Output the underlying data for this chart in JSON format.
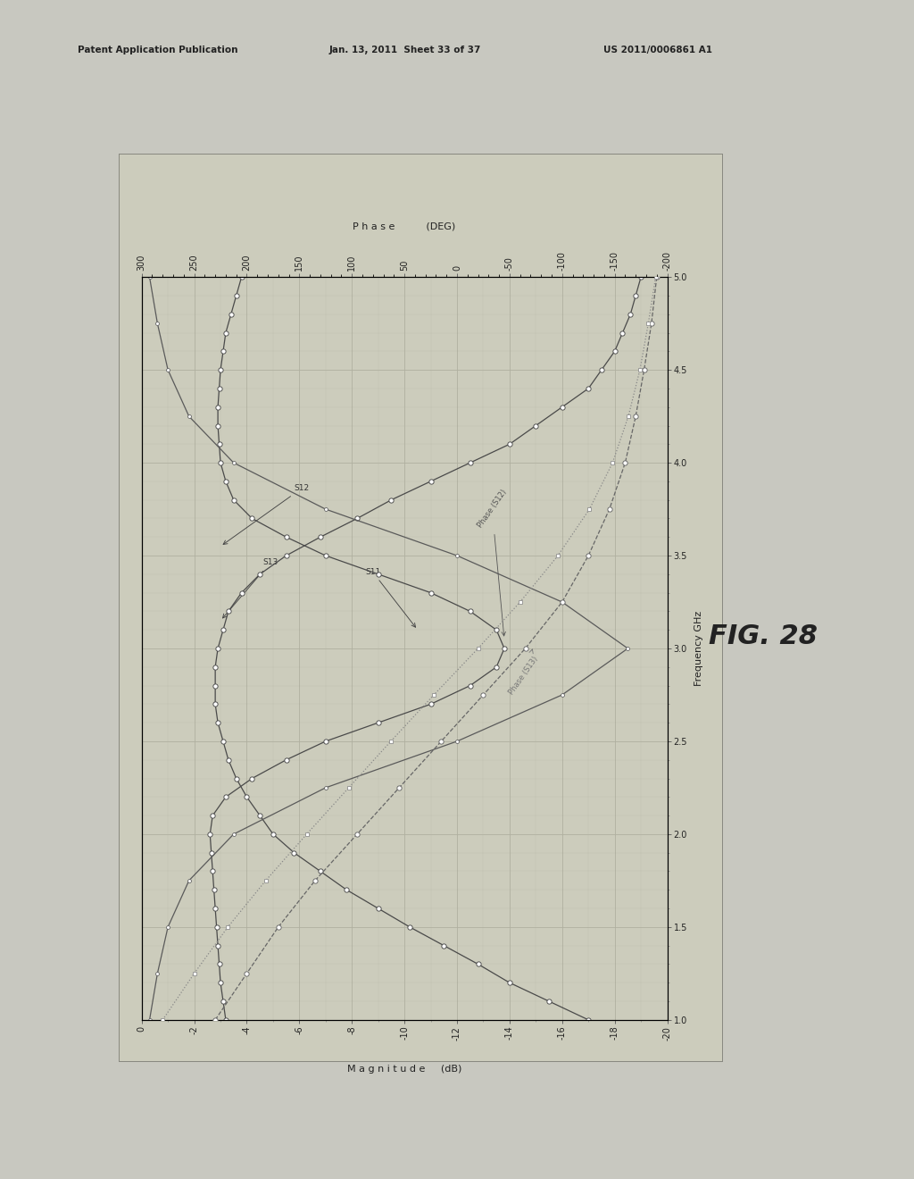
{
  "fig_label": "FIG. 28",
  "freq_label": "Frequency GHz",
  "mag_xlabel": "M a g n i t u d e     (dB)",
  "phase_title": "P h a s e",
  "phase_unit": "(DEG)",
  "freq_min": 1.0,
  "freq_max": 5.0,
  "mag_min": -20,
  "mag_max": 0,
  "phase_min": -200,
  "phase_max": 300,
  "mag_ticks": [
    0,
    -2,
    -4,
    -6,
    -8,
    -10,
    -12,
    -14,
    -16,
    -18,
    -20
  ],
  "phase_ticks": [
    300,
    250,
    200,
    150,
    100,
    50,
    0,
    -50,
    -100,
    -150,
    -200
  ],
  "freq_ticks": [
    1.0,
    1.5,
    2.0,
    2.5,
    3.0,
    3.5,
    4.0,
    4.5,
    5.0
  ],
  "bg_color": "#c8c8c0",
  "plot_bg_color": "#ccccbc",
  "grid_color": "#b0b0a0",
  "header_left": "Patent Application Publication",
  "header_mid": "Jan. 13, 2011  Sheet 33 of 37",
  "header_right": "US 2011/0006861 A1",
  "S12_freq": [
    1.0,
    1.1,
    1.2,
    1.3,
    1.4,
    1.5,
    1.6,
    1.7,
    1.8,
    1.9,
    2.0,
    2.1,
    2.2,
    2.3,
    2.4,
    2.5,
    2.6,
    2.7,
    2.8,
    2.9,
    3.0,
    3.1,
    3.2,
    3.3,
    3.4,
    3.5,
    3.6,
    3.7,
    3.8,
    3.9,
    4.0,
    4.1,
    4.2,
    4.3,
    4.4,
    4.5,
    4.6,
    4.7,
    4.8,
    4.9,
    5.0
  ],
  "S12_mag": [
    -3.2,
    -3.1,
    -3.0,
    -2.95,
    -2.9,
    -2.85,
    -2.8,
    -2.75,
    -2.7,
    -2.65,
    -2.6,
    -2.7,
    -3.2,
    -4.2,
    -5.5,
    -7.0,
    -9.0,
    -11.0,
    -12.5,
    -13.5,
    -13.8,
    -13.5,
    -12.5,
    -11.0,
    -9.0,
    -7.0,
    -5.5,
    -4.2,
    -3.5,
    -3.2,
    -3.0,
    -2.95,
    -2.9,
    -2.9,
    -2.95,
    -3.0,
    -3.1,
    -3.2,
    -3.4,
    -3.6,
    -3.8
  ],
  "S13_freq": [
    1.0,
    1.1,
    1.2,
    1.3,
    1.4,
    1.5,
    1.6,
    1.7,
    1.8,
    1.9,
    2.0,
    2.1,
    2.2,
    2.3,
    2.4,
    2.5,
    2.6,
    2.7,
    2.8,
    2.9,
    3.0,
    3.1,
    3.2,
    3.3,
    3.4,
    3.5,
    3.6,
    3.7,
    3.8,
    3.9,
    4.0,
    4.1,
    4.2,
    4.3,
    4.4,
    4.5,
    4.6,
    4.7,
    4.8,
    4.9,
    5.0
  ],
  "S13_mag": [
    -17.0,
    -15.5,
    -14.0,
    -12.8,
    -11.5,
    -10.2,
    -9.0,
    -7.8,
    -6.8,
    -5.8,
    -5.0,
    -4.5,
    -4.0,
    -3.6,
    -3.3,
    -3.1,
    -2.9,
    -2.8,
    -2.8,
    -2.8,
    -2.9,
    -3.1,
    -3.3,
    -3.8,
    -4.5,
    -5.5,
    -6.8,
    -8.2,
    -9.5,
    -11.0,
    -12.5,
    -14.0,
    -15.0,
    -16.0,
    -17.0,
    -17.5,
    -18.0,
    -18.3,
    -18.6,
    -18.8,
    -19.0
  ],
  "S11_freq": [
    1.0,
    1.25,
    1.5,
    1.75,
    2.0,
    2.25,
    2.5,
    2.75,
    3.0,
    3.25,
    3.5,
    3.75,
    4.0,
    4.25,
    4.5,
    4.75,
    5.0
  ],
  "S11_mag": [
    -0.3,
    -0.6,
    -1.0,
    -1.8,
    -3.5,
    -7.0,
    -12.0,
    -16.0,
    -18.5,
    -16.0,
    -12.0,
    -7.0,
    -3.5,
    -1.8,
    -1.0,
    -0.6,
    -0.3
  ],
  "PhaseS12_freq": [
    1.0,
    1.25,
    1.5,
    1.75,
    2.0,
    2.25,
    2.5,
    2.75,
    3.0,
    3.25,
    3.5,
    3.75,
    4.0,
    4.25,
    4.5,
    4.75,
    5.0
  ],
  "PhaseS12_val": [
    230,
    200,
    170,
    135,
    95,
    55,
    15,
    -25,
    -65,
    -100,
    -125,
    -145,
    -160,
    -170,
    -178,
    -185,
    -190
  ],
  "PhaseS13_freq": [
    1.0,
    1.25,
    1.5,
    1.75,
    2.0,
    2.25,
    2.5,
    2.75,
    3.0,
    3.25,
    3.5,
    3.75,
    4.0,
    4.25,
    4.5,
    4.75,
    5.0
  ],
  "PhaseS13_val": [
    280,
    250,
    218,
    182,
    143,
    103,
    63,
    22,
    -20,
    -60,
    -96,
    -126,
    -148,
    -163,
    -174,
    -182,
    -189
  ]
}
